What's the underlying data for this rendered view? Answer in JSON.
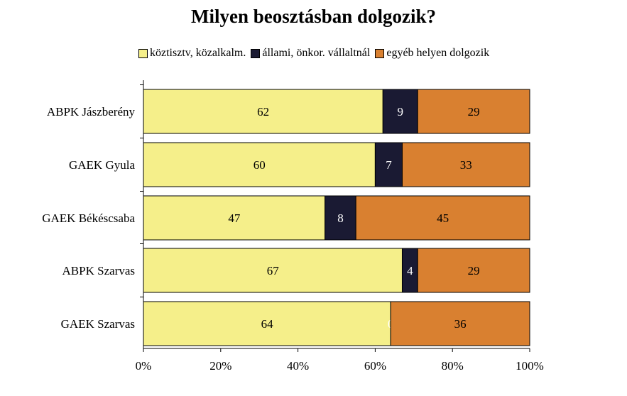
{
  "chart_data": {
    "type": "bar",
    "orientation": "horizontal",
    "stacked": "percent",
    "title": "Milyen beosztásban dolgozik?",
    "categories": [
      "ABPK Jászberény",
      "GAEK Gyula",
      "GAEK Békéscsaba",
      "ABPK Szarvas",
      "GAEK Szarvas"
    ],
    "series": [
      {
        "name": "köztisztv, közalkalm.",
        "color": "#f5ef8a",
        "label_color": "#000000",
        "values": [
          62,
          60,
          47,
          67,
          64
        ]
      },
      {
        "name": "állami, önkor. vállaltnál",
        "color": "#1a1a33",
        "label_color": "#ffffff",
        "values": [
          9,
          7,
          8,
          4,
          0
        ]
      },
      {
        "name": "egyéb helyen dolgozik",
        "color": "#d98030",
        "label_color": "#000000",
        "values": [
          29,
          33,
          45,
          29,
          36
        ]
      }
    ],
    "xlim": [
      0,
      100
    ],
    "xticks": [
      "0%",
      "20%",
      "40%",
      "60%",
      "80%",
      "100%"
    ],
    "legend_position": "top",
    "grid": false
  }
}
